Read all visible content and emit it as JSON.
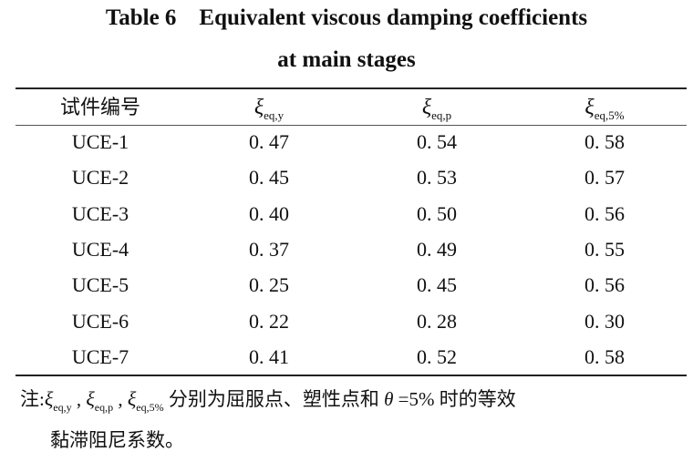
{
  "title_line1": "Table 6    Equivalent viscous damping coefficients",
  "title_line2": "at main stages",
  "headers": {
    "specimen": "试件编号",
    "xi_symbol": "ξ",
    "col1_sub": "eq,y",
    "col2_sub": "eq,p",
    "col3_sub": "eq,5%"
  },
  "rows": [
    {
      "id": "UCE-1",
      "y": "0. 47",
      "p": "0. 54",
      "f": "0. 58"
    },
    {
      "id": "UCE-2",
      "y": "0. 45",
      "p": "0. 53",
      "f": "0. 57"
    },
    {
      "id": "UCE-3",
      "y": "0. 40",
      "p": "0. 50",
      "f": "0. 56"
    },
    {
      "id": "UCE-4",
      "y": "0. 37",
      "p": "0. 49",
      "f": "0. 55"
    },
    {
      "id": "UCE-5",
      "y": "0. 25",
      "p": "0. 45",
      "f": "0. 56"
    },
    {
      "id": "UCE-6",
      "y": "0. 22",
      "p": "0. 28",
      "f": "0. 30"
    },
    {
      "id": "UCE-7",
      "y": "0. 41",
      "p": "0. 52",
      "f": "0. 58"
    }
  ],
  "note": {
    "prefix": "注:",
    "sep": " ,",
    "text1": " 分别为屈服点、塑性点和 ",
    "theta": "θ",
    "text2": " =5% 时的等效",
    "text3": "黏滞阻尼系数。"
  }
}
